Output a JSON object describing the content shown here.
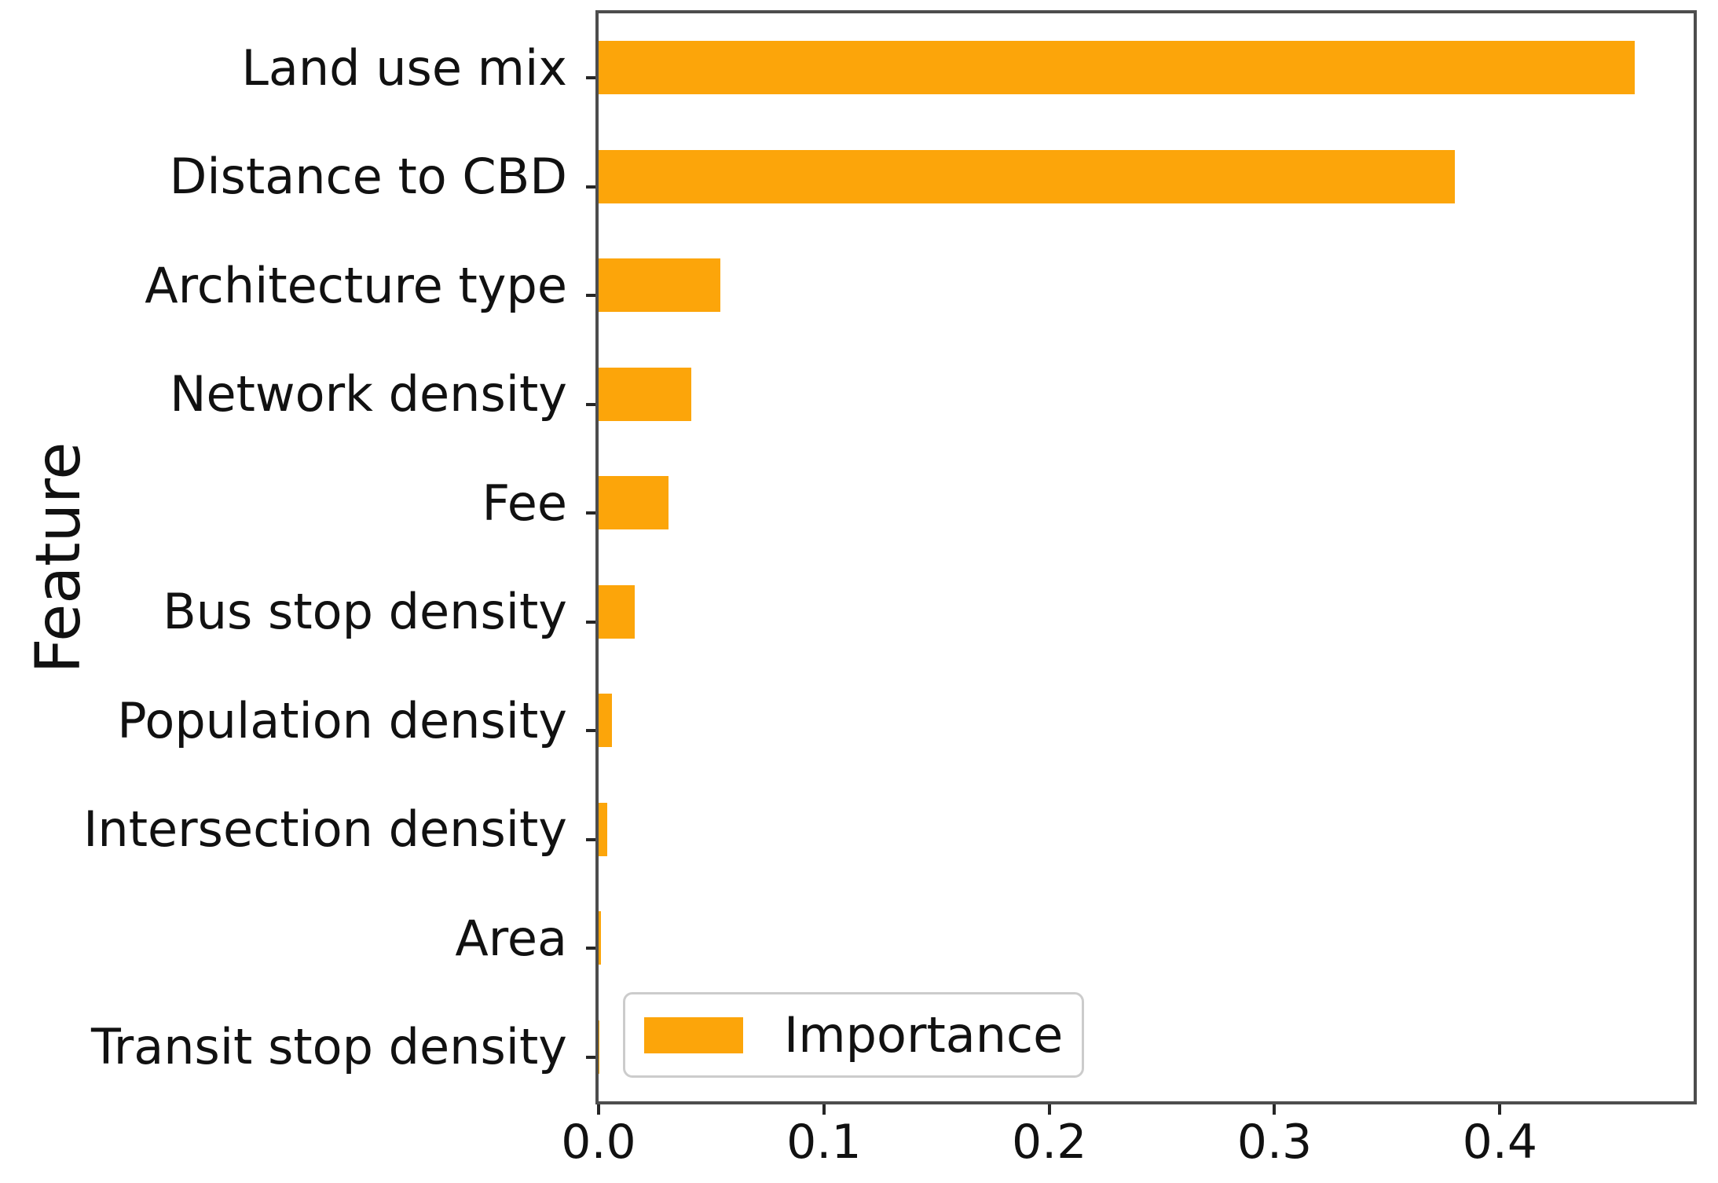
{
  "chart_data": {
    "type": "bar",
    "orientation": "horizontal",
    "title": "",
    "xlabel": "",
    "ylabel": "Feature",
    "categories": [
      "Land use mix",
      "Distance to CBD",
      "Architecture type",
      "Network density",
      "Fee",
      "Bus stop density",
      "Population density",
      "Intersection density",
      "Area",
      "Transit stop density"
    ],
    "values": [
      0.46,
      0.38,
      0.054,
      0.041,
      0.031,
      0.016,
      0.006,
      0.004,
      0.001,
      0.0005
    ],
    "series_name": "Importance",
    "xlim": [
      0,
      0.486
    ],
    "xticks": [
      0.0,
      0.1,
      0.2,
      0.3,
      0.4
    ],
    "xtick_labels": [
      "0.0",
      "0.1",
      "0.2",
      "0.3",
      "0.4"
    ],
    "grid": false,
    "legend": {
      "label": "Importance",
      "position": "lower center inside"
    }
  },
  "colors": {
    "bar": "#FCA50A",
    "spine": "#4d4d4d",
    "tick": "#262626",
    "text": "#111111",
    "legend_border": "#cccccc",
    "background": "#ffffff"
  }
}
